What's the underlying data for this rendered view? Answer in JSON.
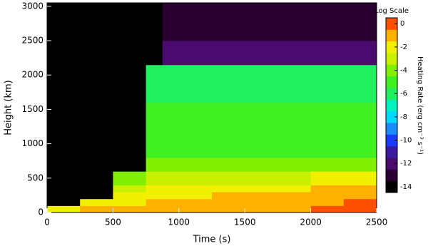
{
  "chart_data": {
    "type": "heatmap",
    "xlabel": "Time (s)",
    "ylabel": "Height (km)",
    "colorbar_title": "Log Scale",
    "colorbar_label": "Heating Rate (erg cm⁻³ s⁻¹)",
    "x_edges": [
      0,
      250,
      500,
      750,
      875,
      1000,
      1250,
      1500,
      1750,
      2000,
      2250,
      2500
    ],
    "y_edges": [
      0,
      100,
      200,
      300,
      400,
      600,
      800,
      1200,
      1600,
      2150,
      2500,
      3050
    ],
    "z": [
      [
        -2,
        -1,
        -1,
        -1,
        -1,
        -1,
        -1,
        -1,
        -1,
        -0.5,
        -0.5
      ],
      [
        -14,
        -2,
        -2,
        -1.5,
        -1.5,
        -1.5,
        -1,
        -1,
        -1,
        -1,
        -0.5
      ],
      [
        -14,
        -14,
        -2.5,
        -2,
        -2,
        -2,
        -1.5,
        -1.5,
        -1.5,
        -1,
        -1
      ],
      [
        -14,
        -14,
        -3,
        -2.5,
        -2.5,
        -2,
        -2,
        -2,
        -2,
        -1.5,
        -1.5
      ],
      [
        -14,
        -14,
        -4,
        -3,
        -3,
        -3,
        -3,
        -3,
        -3,
        -2.5,
        -2.5
      ],
      [
        -14,
        -14,
        -14,
        -4,
        -4,
        -4,
        -4,
        -4,
        -4,
        -4,
        -4
      ],
      [
        -14,
        -14,
        -14,
        -5,
        -5,
        -5,
        -5,
        -5,
        -5,
        -5,
        -5
      ],
      [
        -14,
        -14,
        -14,
        -5.5,
        -5.5,
        -5.5,
        -5.5,
        -5.5,
        -5.5,
        -5.5,
        -5.5
      ],
      [
        -14,
        -14,
        -14,
        -6,
        -6.5,
        -6.5,
        -6.5,
        -6.5,
        -6.5,
        -6.5,
        -6.5
      ],
      [
        -14,
        -14,
        -14,
        -14,
        -12.5,
        -12.5,
        -12.5,
        -12.5,
        -12.5,
        -12.5,
        -12.5
      ],
      [
        -14,
        -14,
        -14,
        -14,
        -13,
        -13,
        -13,
        -13,
        -13,
        -13,
        -13
      ]
    ],
    "xlim": [
      0,
      2500
    ],
    "xticks": [
      0,
      500,
      1000,
      1500,
      2000,
      2500
    ],
    "ylim": [
      0,
      3050
    ],
    "yticks": [
      0,
      500,
      1000,
      1500,
      2000,
      2500,
      3000
    ],
    "zlim": [
      -14.5,
      0.5
    ],
    "zticks": [
      0,
      -2,
      -4,
      -6,
      -8,
      -10,
      -12,
      -14
    ],
    "colormap": [
      "#000000",
      "#2a0033",
      "#4b0a6e",
      "#3a1aa0",
      "#1a3cff",
      "#1a8cff",
      "#00d8ff",
      "#00f0c0",
      "#20f060",
      "#40f020",
      "#80f000",
      "#c8f000",
      "#f0f000",
      "#ffb000",
      "#ff5000"
    ]
  }
}
